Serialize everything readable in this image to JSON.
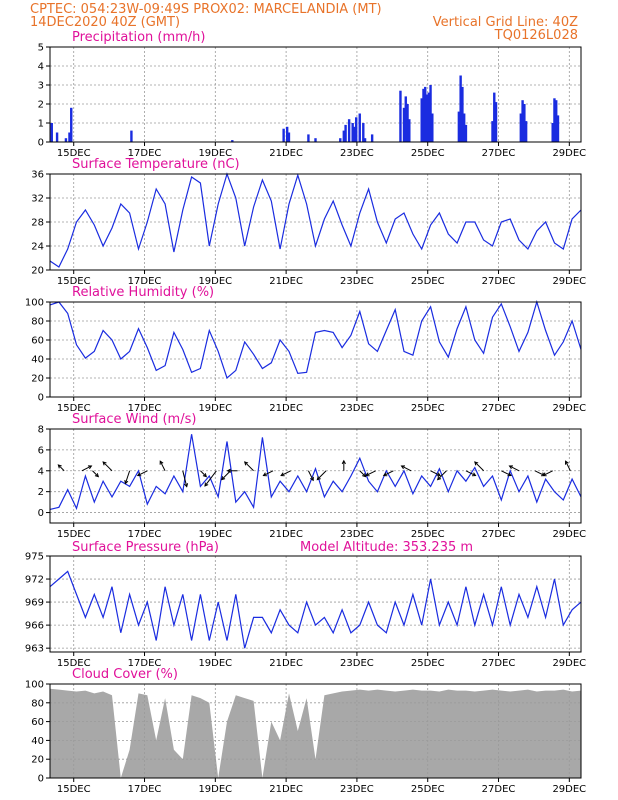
{
  "header": {
    "line1_left": "CPTEC:   054:23W-09:49S   PROX02: MARCELANDIA (MT)",
    "line2_left": "14DEC2020 40Z (GMT)",
    "line2_right": "Vertical Grid Line: 40Z",
    "line3_right": "TQ0126L028"
  },
  "colors": {
    "header": "#e8732a",
    "title": "#e0119a",
    "series": "#1a2ce0",
    "cloud": "#a8a8a8",
    "grid": "#9a9a9a"
  },
  "x_ticks": [
    "15DEC",
    "17DEC",
    "19DEC",
    "21DEC",
    "23DEC",
    "25DEC",
    "27DEC",
    "29DEC"
  ],
  "chart_data": [
    {
      "type": "bar",
      "title": "Precipitation (mm/h)",
      "ylim": [
        0,
        5
      ],
      "yticks": [
        "0",
        "1",
        "2",
        "3",
        "4",
        "5"
      ],
      "x_range": [
        0,
        15
      ],
      "x": [
        0.05,
        0.2,
        0.45,
        0.55,
        0.6,
        2.3,
        5.15,
        6.6,
        6.7,
        6.75,
        7.3,
        7.5,
        8.2,
        8.3,
        8.35,
        8.45,
        8.55,
        8.6,
        8.65,
        8.75,
        8.85,
        8.9,
        9.1,
        9.9,
        10.0,
        10.05,
        10.1,
        10.15,
        10.5,
        10.55,
        10.6,
        10.65,
        10.7,
        10.75,
        10.8,
        11.55,
        11.6,
        11.65,
        11.7,
        11.75,
        12.5,
        12.55,
        12.6,
        13.3,
        13.35,
        13.4,
        13.45,
        14.2,
        14.25,
        14.3,
        14.35
      ],
      "values": [
        1.0,
        0.5,
        0.2,
        0.5,
        1.8,
        0.6,
        0.1,
        0.7,
        0.8,
        0.5,
        0.4,
        0.2,
        0.2,
        0.6,
        0.9,
        1.2,
        1.0,
        0.8,
        1.3,
        1.5,
        1.0,
        0.2,
        0.4,
        2.7,
        1.8,
        2.4,
        2.0,
        1.2,
        2.3,
        2.8,
        2.9,
        2.5,
        2.6,
        3.0,
        1.5,
        1.6,
        3.5,
        2.9,
        1.5,
        0.9,
        1.1,
        2.6,
        2.1,
        1.5,
        2.2,
        2.0,
        1.1,
        1.0,
        2.3,
        2.2,
        1.4
      ]
    },
    {
      "type": "line",
      "title": "Surface Temperature (nC)",
      "ylim": [
        20,
        36
      ],
      "yticks": [
        "20",
        "24",
        "28",
        "32",
        "36"
      ],
      "x_range": [
        0,
        15
      ],
      "x": [
        0,
        0.25,
        0.5,
        0.75,
        1.0,
        1.25,
        1.5,
        1.75,
        2.0,
        2.25,
        2.5,
        2.75,
        3.0,
        3.25,
        3.5,
        3.75,
        4.0,
        4.25,
        4.5,
        4.75,
        5.0,
        5.25,
        5.5,
        5.75,
        6.0,
        6.25,
        6.5,
        6.75,
        7.0,
        7.25,
        7.5,
        7.75,
        8.0,
        8.25,
        8.5,
        8.75,
        9.0,
        9.25,
        9.5,
        9.75,
        10.0,
        10.25,
        10.5,
        10.75,
        11.0,
        11.25,
        11.5,
        11.75,
        12.0,
        12.25,
        12.5,
        12.75,
        13.0,
        13.25,
        13.5,
        13.75,
        14.0,
        14.25,
        14.5,
        14.75,
        15.0
      ],
      "values": [
        21.5,
        20.5,
        23.5,
        28.0,
        30.0,
        27.5,
        24.0,
        27.0,
        31.0,
        29.5,
        23.5,
        28.0,
        33.5,
        31.0,
        23.0,
        30.0,
        35.5,
        34.5,
        24.0,
        31.0,
        36.0,
        32.0,
        24.0,
        30.5,
        35.0,
        31.5,
        23.5,
        31.0,
        35.8,
        31.0,
        24.0,
        28.5,
        31.5,
        27.5,
        24.0,
        29.5,
        33.5,
        28.0,
        24.5,
        28.5,
        29.5,
        26.0,
        23.5,
        27.5,
        29.5,
        26.0,
        24.5,
        28.0,
        28.0,
        25.0,
        24.0,
        28.0,
        28.5,
        25.0,
        23.5,
        26.5,
        28.0,
        24.5,
        23.5,
        28.5,
        30.0
      ]
    },
    {
      "type": "line",
      "title": "Relative Humidity (%)",
      "ylim": [
        0,
        100
      ],
      "yticks": [
        "0",
        "20",
        "40",
        "60",
        "80",
        "100"
      ],
      "x_range": [
        0,
        15
      ],
      "x": [
        0,
        0.25,
        0.5,
        0.75,
        1.0,
        1.25,
        1.5,
        1.75,
        2.0,
        2.25,
        2.5,
        2.75,
        3.0,
        3.25,
        3.5,
        3.75,
        4.0,
        4.25,
        4.5,
        4.75,
        5.0,
        5.25,
        5.5,
        5.75,
        6.0,
        6.25,
        6.5,
        6.75,
        7.0,
        7.25,
        7.5,
        7.75,
        8.0,
        8.25,
        8.5,
        8.75,
        9.0,
        9.25,
        9.5,
        9.75,
        10.0,
        10.25,
        10.5,
        10.75,
        11.0,
        11.25,
        11.5,
        11.75,
        12.0,
        12.25,
        12.5,
        12.75,
        13.0,
        13.25,
        13.5,
        13.75,
        14.0,
        14.25,
        14.5,
        14.75,
        15.0
      ],
      "values": [
        97,
        100,
        88,
        55,
        41,
        48,
        70,
        60,
        40,
        48,
        72,
        52,
        28,
        33,
        68,
        50,
        26,
        30,
        70,
        48,
        20,
        28,
        58,
        45,
        30,
        36,
        60,
        48,
        25,
        26,
        68,
        70,
        68,
        52,
        65,
        90,
        56,
        48,
        70,
        92,
        48,
        44,
        80,
        95,
        58,
        42,
        72,
        95,
        60,
        46,
        84,
        98,
        74,
        48,
        68,
        100,
        70,
        44,
        58,
        80,
        50
      ]
    },
    {
      "type": "line",
      "title": "Surface Wind (m/s)",
      "ylim": [
        -1,
        8
      ],
      "yticks": [
        "0",
        "2",
        "4",
        "6",
        "8"
      ],
      "x_range": [
        0,
        15
      ],
      "x": [
        0,
        0.25,
        0.5,
        0.75,
        1.0,
        1.25,
        1.5,
        1.75,
        2.0,
        2.25,
        2.5,
        2.75,
        3.0,
        3.25,
        3.5,
        3.75,
        4.0,
        4.25,
        4.5,
        4.75,
        5.0,
        5.25,
        5.5,
        5.75,
        6.0,
        6.25,
        6.5,
        6.75,
        7.0,
        7.25,
        7.5,
        7.75,
        8.0,
        8.25,
        8.5,
        8.75,
        9.0,
        9.25,
        9.5,
        9.75,
        10.0,
        10.25,
        10.5,
        10.75,
        11.0,
        11.25,
        11.5,
        11.75,
        12.0,
        12.25,
        12.5,
        12.75,
        13.0,
        13.25,
        13.5,
        13.75,
        14.0,
        14.25,
        14.5,
        14.75,
        15.0
      ],
      "values": [
        0.3,
        0.5,
        2.2,
        0.4,
        3.5,
        1.0,
        3.0,
        1.5,
        3.0,
        2.5,
        4.0,
        0.8,
        2.5,
        1.8,
        3.5,
        2.0,
        7.5,
        2.5,
        3.5,
        1.5,
        6.8,
        1.0,
        2.0,
        0.5,
        7.2,
        1.5,
        3.0,
        2.0,
        3.5,
        2.0,
        4.2,
        1.5,
        3.0,
        2.0,
        3.5,
        5.2,
        3.0,
        2.0,
        4.0,
        2.5,
        4.0,
        1.8,
        3.5,
        2.5,
        4.2,
        2.0,
        4.0,
        3.0,
        4.3,
        2.5,
        3.5,
        1.2,
        4.0,
        2.0,
        3.5,
        1.0,
        3.2,
        2.0,
        1.2,
        3.2,
        1.5
      ],
      "arrows": {
        "x": [
          0.4,
          0.9,
          1.2,
          1.75,
          2.25,
          2.75,
          3.25,
          3.75,
          4.25,
          4.7,
          5.1,
          5.3,
          5.75,
          6.3,
          6.8,
          7.3,
          7.8,
          8.3,
          8.75,
          9.2,
          9.7,
          10.2,
          10.75,
          11.2,
          11.75,
          12.25,
          12.75,
          13.25,
          13.7,
          14.2,
          14.7
        ],
        "u": [
          -1,
          2,
          1,
          -2,
          -1,
          -2,
          -1,
          1,
          1,
          -3,
          -2,
          -2,
          -2,
          -2,
          -2,
          1,
          -2,
          0,
          1,
          -2,
          -2,
          -2,
          2,
          -2,
          2,
          -2,
          2,
          -2,
          2,
          -2,
          -1
        ],
        "v": [
          1,
          1,
          -1,
          2,
          -3,
          -1,
          2,
          -4,
          -1,
          -4,
          -2,
          0,
          2,
          -1,
          -1,
          -2,
          -2,
          2,
          -1,
          -1,
          -1,
          1,
          -1,
          -2,
          -1,
          2,
          -1,
          1,
          -1,
          -1,
          2
        ]
      }
    },
    {
      "type": "line",
      "title": "Surface Pressure (hPa)",
      "annotation": "Model Altitude: 353.235 m",
      "ylim": [
        962.5,
        975
      ],
      "yticks": [
        "963",
        "966",
        "969",
        "972",
        "975"
      ],
      "x_range": [
        0,
        15
      ],
      "x": [
        0,
        0.25,
        0.5,
        0.75,
        1.0,
        1.25,
        1.5,
        1.75,
        2.0,
        2.25,
        2.5,
        2.75,
        3.0,
        3.25,
        3.5,
        3.75,
        4.0,
        4.25,
        4.5,
        4.75,
        5.0,
        5.25,
        5.5,
        5.75,
        6.0,
        6.25,
        6.5,
        6.75,
        7.0,
        7.25,
        7.5,
        7.75,
        8.0,
        8.25,
        8.5,
        8.75,
        9.0,
        9.25,
        9.5,
        9.75,
        10.0,
        10.25,
        10.5,
        10.75,
        11.0,
        11.25,
        11.5,
        11.75,
        12.0,
        12.25,
        12.5,
        12.75,
        13.0,
        13.25,
        13.5,
        13.75,
        14.0,
        14.25,
        14.5,
        14.75,
        15.0
      ],
      "values": [
        971,
        972,
        973,
        970,
        967,
        970,
        967,
        971,
        965,
        970,
        966,
        969,
        964,
        971,
        966,
        970,
        964,
        970,
        964,
        969,
        964,
        970,
        963,
        967,
        967,
        965,
        968,
        966,
        965,
        969,
        966,
        967,
        965,
        968,
        965,
        966,
        969,
        966,
        965,
        969,
        966,
        970,
        966,
        972,
        966,
        969,
        966,
        971,
        966,
        970,
        966,
        971,
        966,
        970,
        967,
        971,
        967,
        972,
        966,
        968,
        969
      ]
    },
    {
      "type": "area",
      "title": "Cloud Cover (%)",
      "ylim": [
        0,
        100
      ],
      "yticks": [
        "0",
        "20",
        "40",
        "60",
        "80",
        "100"
      ],
      "x_range": [
        0,
        15
      ],
      "x": [
        0,
        0.25,
        0.5,
        0.75,
        1.0,
        1.25,
        1.5,
        1.75,
        2.0,
        2.25,
        2.5,
        2.75,
        3.0,
        3.25,
        3.5,
        3.75,
        4.0,
        4.25,
        4.5,
        4.75,
        5.0,
        5.25,
        5.5,
        5.75,
        6.0,
        6.25,
        6.5,
        6.75,
        7.0,
        7.25,
        7.5,
        7.75,
        8.0,
        8.25,
        8.5,
        8.75,
        9.0,
        9.25,
        9.5,
        9.75,
        10.0,
        10.25,
        10.5,
        10.75,
        11.0,
        11.25,
        11.5,
        11.75,
        12.0,
        12.25,
        12.5,
        12.75,
        13.0,
        13.25,
        13.5,
        13.75,
        14.0,
        14.25,
        14.5,
        14.75,
        15.0
      ],
      "values": [
        95,
        94,
        93,
        92,
        93,
        90,
        92,
        88,
        0,
        30,
        90,
        88,
        40,
        85,
        30,
        20,
        88,
        85,
        80,
        0,
        60,
        88,
        85,
        82,
        0,
        60,
        40,
        90,
        50,
        85,
        20,
        88,
        90,
        92,
        93,
        94,
        93,
        94,
        93,
        92,
        93,
        94,
        93,
        93,
        92,
        94,
        93,
        93,
        92,
        93,
        94,
        93,
        92,
        93,
        94,
        92,
        93,
        93,
        94,
        92,
        93
      ]
    }
  ]
}
